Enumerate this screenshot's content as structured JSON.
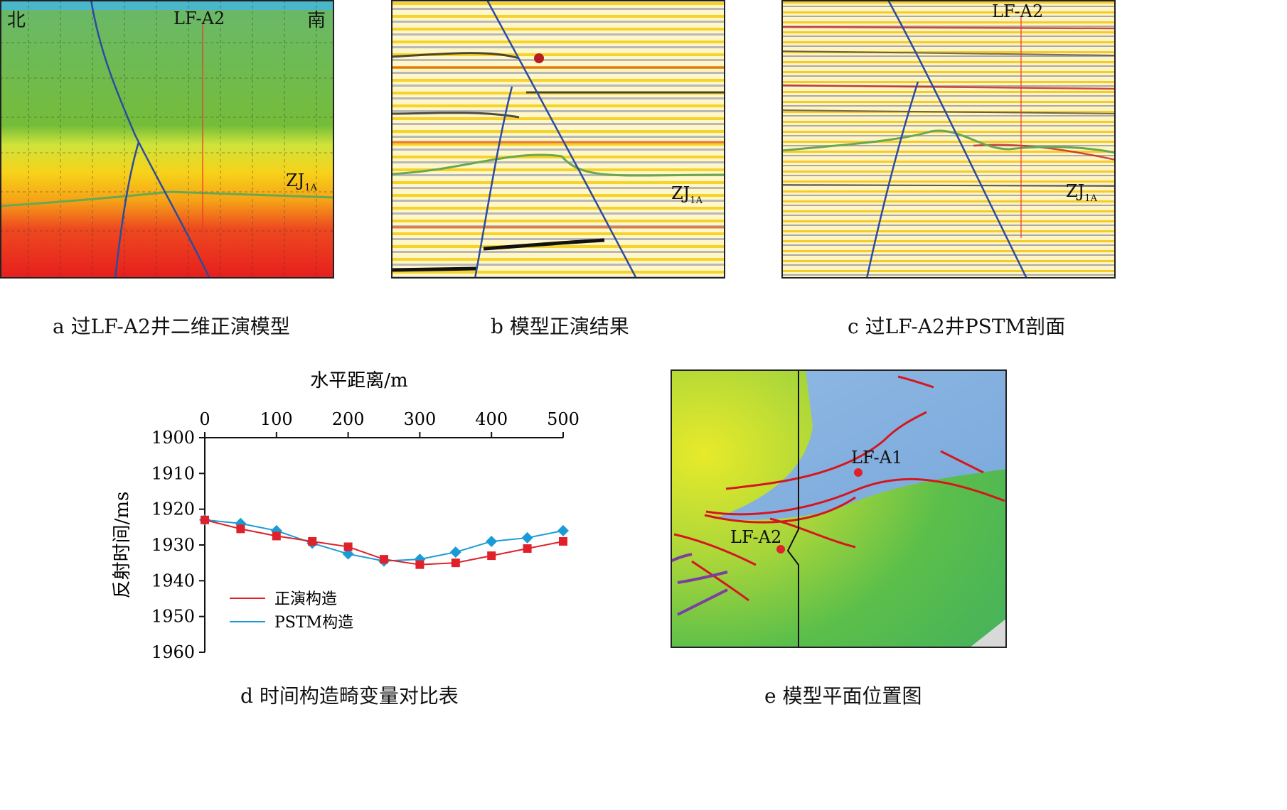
{
  "panels": {
    "a": {
      "caption": "a  过LF-A2井二维正演模型",
      "north": "北",
      "south": "南",
      "well": "LF-A2",
      "horizon": "ZJ",
      "horizon_sub": "1A"
    },
    "b": {
      "caption": "b  模型正演结果",
      "horizon": "ZJ",
      "horizon_sub": "1A"
    },
    "c": {
      "caption": "c  过LF-A2井PSTM剖面",
      "well": "LF-A2",
      "horizon": "ZJ",
      "horizon_sub": "1A"
    },
    "d": {
      "caption": "d  时间构造畸变量对比表"
    },
    "e": {
      "caption": "e  模型平面位置图",
      "well1": "LF-A1",
      "well2": "LF-A2"
    }
  },
  "chart_data": {
    "type": "line",
    "xlabel": "水平距离/m",
    "ylabel": "反射时间/ms",
    "xlim": [
      0,
      500
    ],
    "ylim": [
      1900,
      1960
    ],
    "y_inverted": true,
    "x_axis_position": "top",
    "x_ticks": [
      0,
      100,
      200,
      300,
      400,
      500
    ],
    "y_ticks": [
      1900,
      1910,
      1920,
      1930,
      1940,
      1950,
      1960
    ],
    "x": [
      0,
      50,
      100,
      150,
      200,
      250,
      300,
      350,
      400,
      450,
      500
    ],
    "series": [
      {
        "name": "正演构造",
        "color": "#e0212a",
        "marker": "square",
        "values": [
          1923,
          1925.5,
          1927.5,
          1929,
          1930.5,
          1934,
          1935.5,
          1935,
          1933,
          1931,
          1929
        ]
      },
      {
        "name": "PSTM构造",
        "color": "#1a9bd8",
        "marker": "diamond",
        "values": [
          1923,
          1924,
          1926,
          1929.5,
          1932.5,
          1934.5,
          1934,
          1932,
          1929,
          1928,
          1926
        ]
      }
    ],
    "legend_position": "bottom-left"
  }
}
